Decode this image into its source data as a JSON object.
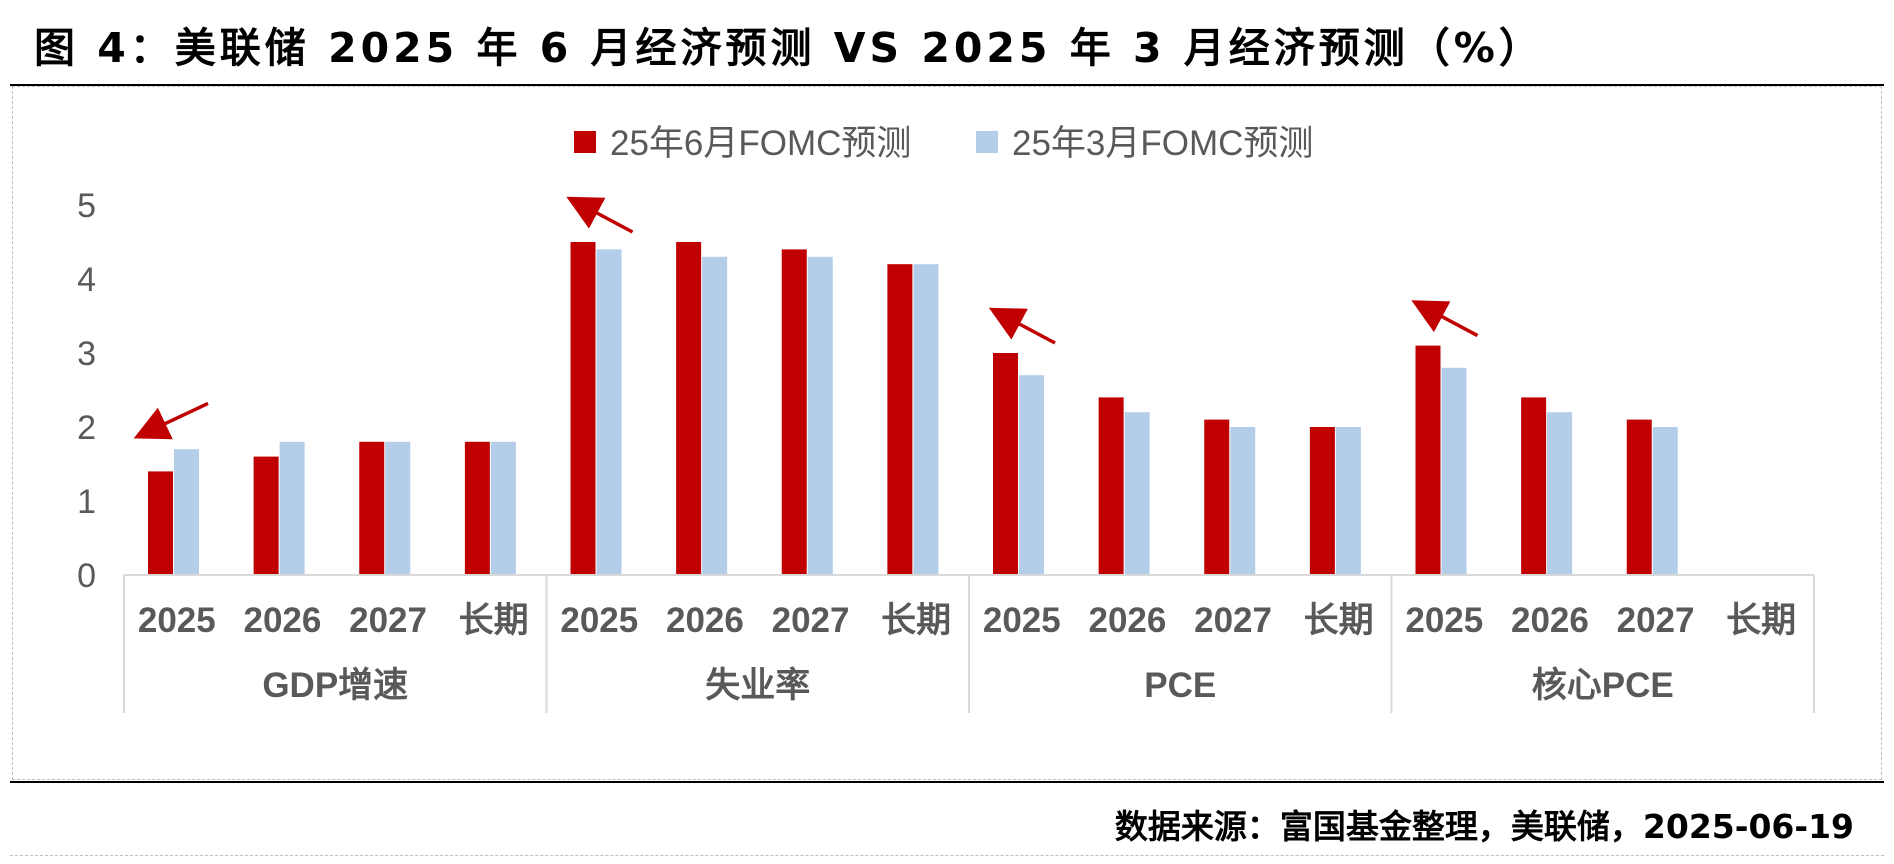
{
  "header": {
    "title": "图 4：美联储 2025 年 6 月经济预测 VS 2025 年 3 月经济预测（%）"
  },
  "footer": {
    "source": "数据来源：富国基金整理，美联储，2025-06-19"
  },
  "chart_data": {
    "type": "bar",
    "groups": [
      {
        "name": "GDP增速",
        "categories": [
          "2025",
          "2026",
          "2027",
          "长期"
        ]
      },
      {
        "name": "失业率",
        "categories": [
          "2025",
          "2026",
          "2027",
          "长期"
        ]
      },
      {
        "name": "PCE",
        "categories": [
          "2025",
          "2026",
          "2027",
          "长期"
        ]
      },
      {
        "name": "核心PCE",
        "categories": [
          "2025",
          "2026",
          "2027",
          "长期"
        ]
      }
    ],
    "series": [
      {
        "name": "25年6月FOMC预测",
        "color": "#c00000",
        "values": [
          1.4,
          1.6,
          1.8,
          1.8,
          4.5,
          4.5,
          4.4,
          4.2,
          3.0,
          2.4,
          2.1,
          2.0,
          3.1,
          2.4,
          2.1,
          null
        ]
      },
      {
        "name": "25年3月FOMC预测",
        "color": "#b4cde8",
        "values": [
          1.7,
          1.8,
          1.8,
          1.8,
          4.4,
          4.3,
          4.3,
          4.2,
          2.7,
          2.2,
          2.0,
          2.0,
          2.8,
          2.2,
          2.0,
          null
        ]
      }
    ],
    "yticks": [
      0,
      1,
      2,
      3,
      4,
      5
    ],
    "ylim": [
      0,
      5
    ],
    "grid": false,
    "legend_position": "top-center",
    "annotations": [
      {
        "type": "arrow",
        "group": "GDP增速",
        "direction": "down",
        "color": "#c00000"
      },
      {
        "type": "arrow",
        "group": "失业率",
        "direction": "up",
        "color": "#c00000"
      },
      {
        "type": "arrow",
        "group": "PCE",
        "direction": "up",
        "color": "#c00000"
      },
      {
        "type": "arrow",
        "group": "核心PCE",
        "direction": "up",
        "color": "#c00000"
      }
    ]
  }
}
